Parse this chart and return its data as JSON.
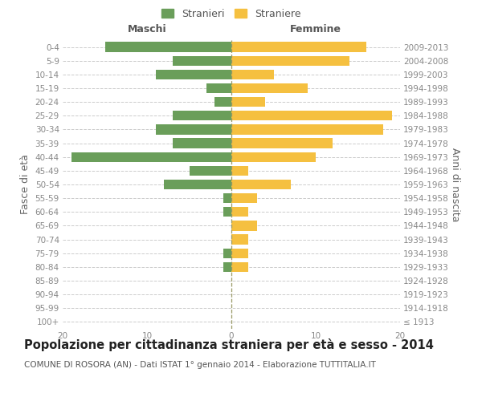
{
  "age_groups": [
    "100+",
    "95-99",
    "90-94",
    "85-89",
    "80-84",
    "75-79",
    "70-74",
    "65-69",
    "60-64",
    "55-59",
    "50-54",
    "45-49",
    "40-44",
    "35-39",
    "30-34",
    "25-29",
    "20-24",
    "15-19",
    "10-14",
    "5-9",
    "0-4"
  ],
  "birth_years": [
    "≤ 1913",
    "1914-1918",
    "1919-1923",
    "1924-1928",
    "1929-1933",
    "1934-1938",
    "1939-1943",
    "1944-1948",
    "1949-1953",
    "1954-1958",
    "1959-1963",
    "1964-1968",
    "1969-1973",
    "1974-1978",
    "1979-1983",
    "1984-1988",
    "1989-1993",
    "1994-1998",
    "1999-2003",
    "2004-2008",
    "2009-2013"
  ],
  "maschi": [
    0,
    0,
    0,
    0,
    1,
    1,
    0,
    0,
    1,
    1,
    8,
    5,
    19,
    7,
    9,
    7,
    2,
    3,
    9,
    7,
    15
  ],
  "femmine": [
    0,
    0,
    0,
    0,
    2,
    2,
    2,
    3,
    2,
    3,
    7,
    2,
    10,
    12,
    18,
    19,
    4,
    9,
    5,
    14,
    16
  ],
  "maschi_color": "#6a9e5a",
  "femmine_color": "#f5c040",
  "grid_color": "#cccccc",
  "title": "Popolazione per cittadinanza straniera per età e sesso - 2014",
  "subtitle": "COMUNE DI ROSORA (AN) - Dati ISTAT 1° gennaio 2014 - Elaborazione TUTTITALIA.IT",
  "ylabel_left": "Fasce di età",
  "ylabel_right": "Anni di nascita",
  "xlabel_left": "Maschi",
  "xlabel_top_right": "Femmine",
  "legend_maschi": "Stranieri",
  "legend_femmine": "Straniere",
  "xlim": 20,
  "title_fontsize": 10.5,
  "subtitle_fontsize": 7.5,
  "tick_fontsize": 7.5,
  "label_fontsize": 9
}
